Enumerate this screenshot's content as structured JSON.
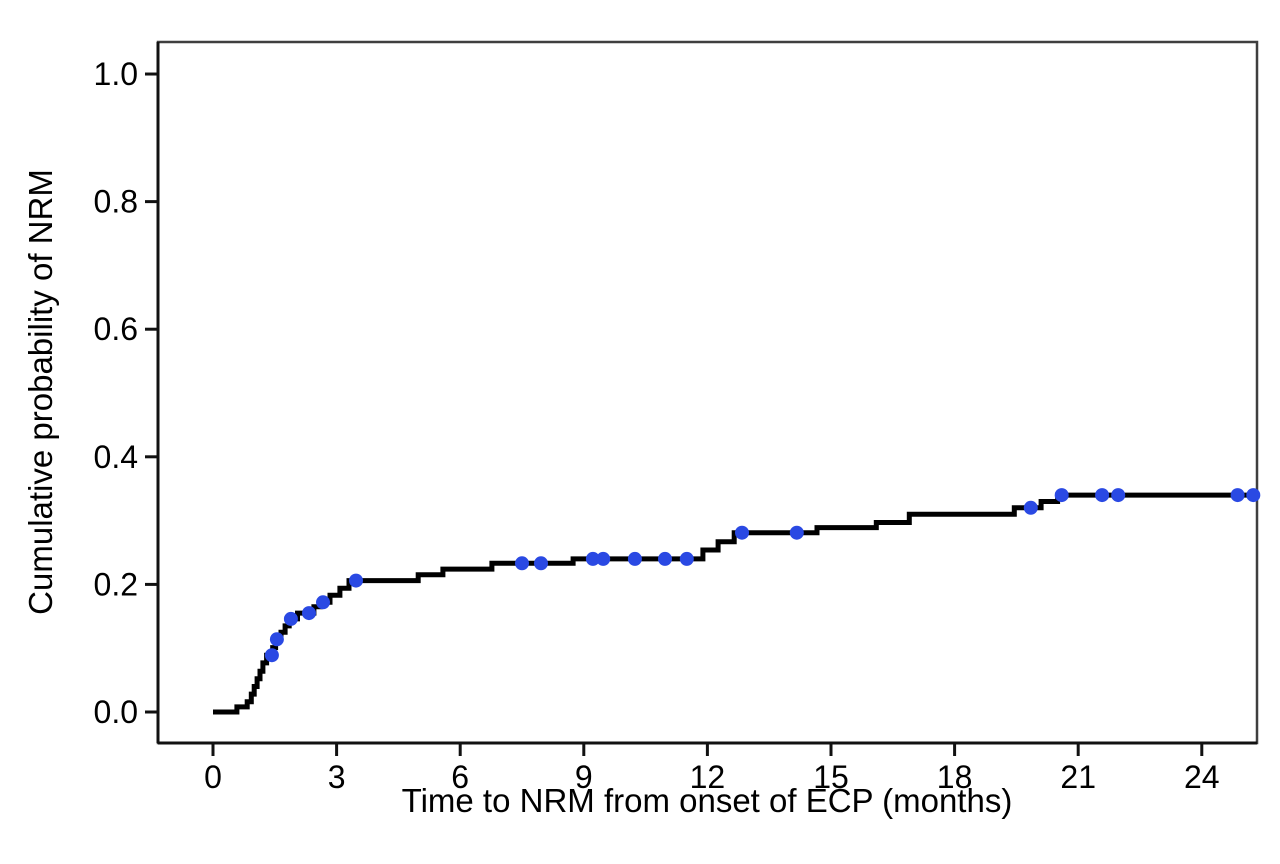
{
  "figure": {
    "background_color": "#ffffff",
    "curve_color": "#000000",
    "censor_color": "#2a49e3",
    "frame_color": "#3f3f3f",
    "axis_color": "#111111"
  },
  "chart_data": {
    "type": "line",
    "subtype": "cumulative-incidence-step-curve",
    "title": "",
    "xlabel": "Time to NRM from onset of ECP (months)",
    "ylabel": "Cumulative probability of NRM",
    "xlim": [
      -1.335,
      25.34
    ],
    "ylim": [
      -0.0486,
      1.0502
    ],
    "x_tick_values": [
      0,
      3,
      6,
      9,
      12,
      15,
      18,
      21,
      24
    ],
    "x_tick_labels": [
      "0",
      "3",
      "6",
      "9",
      "12",
      "15",
      "18",
      "21",
      "24"
    ],
    "y_tick_values": [
      0.0,
      0.2,
      0.4,
      0.6,
      0.8,
      1.0
    ],
    "y_tick_labels": [
      "0.0",
      "0.2",
      "0.4",
      "0.6",
      "0.8",
      "1.0"
    ],
    "grid": false,
    "legend": null,
    "series": [
      {
        "name": "Cumulative probability of NRM",
        "color": "#000000",
        "line_width": 5,
        "step_points": [
          [
            0.0,
            0.0
          ],
          [
            0.58,
            0.008
          ],
          [
            0.83,
            0.016
          ],
          [
            0.93,
            0.028
          ],
          [
            1.0,
            0.04
          ],
          [
            1.07,
            0.052
          ],
          [
            1.14,
            0.064
          ],
          [
            1.21,
            0.077
          ],
          [
            1.3,
            0.089
          ],
          [
            1.45,
            0.101
          ],
          [
            1.52,
            0.114
          ],
          [
            1.65,
            0.125
          ],
          [
            1.75,
            0.135
          ],
          [
            1.85,
            0.146
          ],
          [
            2.05,
            0.155
          ],
          [
            2.45,
            0.165
          ],
          [
            2.6,
            0.172
          ],
          [
            2.84,
            0.183
          ],
          [
            3.08,
            0.194
          ],
          [
            3.3,
            0.206
          ],
          [
            4.98,
            0.215
          ],
          [
            5.58,
            0.224
          ],
          [
            6.77,
            0.233
          ],
          [
            8.74,
            0.24
          ],
          [
            11.89,
            0.254
          ],
          [
            12.26,
            0.267
          ],
          [
            12.65,
            0.281
          ],
          [
            14.66,
            0.289
          ],
          [
            16.1,
            0.297
          ],
          [
            16.9,
            0.31
          ],
          [
            19.45,
            0.32
          ],
          [
            20.1,
            0.33
          ],
          [
            20.5,
            0.34
          ],
          [
            25.35,
            0.34
          ]
        ]
      }
    ],
    "censor_marks": {
      "color": "#2a49e3",
      "radius": 7,
      "points": [
        [
          1.43,
          0.089
        ],
        [
          1.55,
          0.114
        ],
        [
          1.89,
          0.146
        ],
        [
          2.33,
          0.155
        ],
        [
          2.67,
          0.172
        ],
        [
          3.47,
          0.206
        ],
        [
          7.5,
          0.233
        ],
        [
          7.96,
          0.233
        ],
        [
          9.22,
          0.24
        ],
        [
          9.47,
          0.24
        ],
        [
          10.24,
          0.24
        ],
        [
          10.97,
          0.24
        ],
        [
          11.5,
          0.24
        ],
        [
          12.84,
          0.281
        ],
        [
          14.17,
          0.281
        ],
        [
          19.85,
          0.32
        ],
        [
          20.6,
          0.34
        ],
        [
          21.58,
          0.34
        ],
        [
          21.97,
          0.34
        ],
        [
          24.87,
          0.34
        ],
        [
          25.25,
          0.34
        ]
      ]
    }
  }
}
